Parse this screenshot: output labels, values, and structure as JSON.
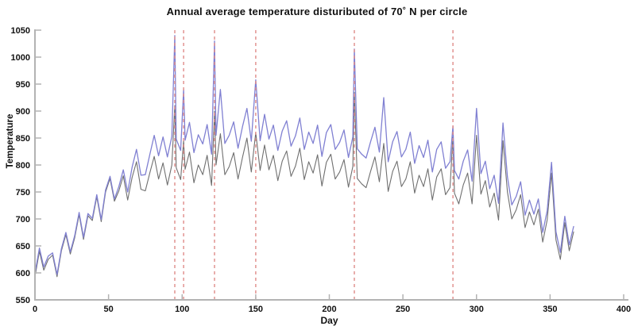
{
  "chart_data": {
    "type": "line",
    "title": "Annual average temperature distuributed of 70˚ N per circle",
    "xlabel": "Day",
    "ylabel": "Temperature",
    "xlim": [
      0,
      400
    ],
    "ylim": [
      550,
      1050
    ],
    "x_ticks": [
      0,
      50,
      100,
      150,
      200,
      250,
      300,
      350,
      400
    ],
    "y_ticks": [
      550,
      600,
      650,
      700,
      750,
      800,
      850,
      900,
      950,
      1000,
      1050
    ],
    "grid": false,
    "legend": false,
    "days": [
      0,
      3,
      6,
      9,
      12,
      15,
      18,
      21,
      24,
      27,
      30,
      33,
      36,
      39,
      42,
      45,
      48,
      51,
      54,
      57,
      60,
      63,
      66,
      69,
      72,
      75,
      78,
      81,
      84,
      87,
      90,
      93,
      95,
      96,
      99,
      101,
      102,
      105,
      108,
      111,
      114,
      117,
      120,
      122,
      123,
      126,
      129,
      132,
      135,
      138,
      141,
      144,
      147,
      150,
      153,
      156,
      159,
      162,
      165,
      168,
      171,
      174,
      177,
      180,
      183,
      186,
      189,
      192,
      195,
      198,
      201,
      204,
      207,
      210,
      213,
      216,
      217,
      219,
      222,
      225,
      228,
      231,
      234,
      237,
      240,
      243,
      246,
      249,
      252,
      255,
      258,
      261,
      264,
      267,
      270,
      273,
      276,
      279,
      282,
      284,
      285,
      288,
      291,
      294,
      297,
      300,
      303,
      306,
      309,
      312,
      315,
      318,
      321,
      324,
      327,
      330,
      333,
      336,
      339,
      342,
      345,
      348,
      351,
      354,
      357,
      360,
      363,
      366
    ],
    "series": [
      {
        "label": "lower temperature curve (gray)",
        "color": "#6f6f6f",
        "values": [
          593,
          640,
          605,
          625,
          633,
          593,
          641,
          671,
          635,
          665,
          708,
          662,
          706,
          697,
          741,
          695,
          750,
          775,
          733,
          752,
          780,
          735,
          777,
          806,
          755,
          752,
          785,
          816,
          774,
          804,
          763,
          800,
          910,
          795,
          773,
          845,
          792,
          824,
          767,
          800,
          782,
          818,
          762,
          900,
          800,
          858,
          782,
          797,
          823,
          774,
          814,
          850,
          787,
          860,
          790,
          837,
          791,
          818,
          771,
          807,
          826,
          779,
          798,
          831,
          773,
          806,
          785,
          819,
          761,
          805,
          820,
          774,
          787,
          810,
          759,
          797,
          935,
          775,
          765,
          758,
          788,
          815,
          769,
          840,
          751,
          788,
          807,
          760,
          774,
          806,
          748,
          781,
          760,
          793,
          735,
          778,
          793,
          745,
          758,
          852,
          748,
          728,
          763,
          785,
          728,
          855,
          746,
          771,
          722,
          748,
          698,
          845,
          750,
          700,
          717,
          745,
          684,
          713,
          689,
          718,
          657,
          698,
          785,
          661,
          625,
          693,
          641,
          676
        ]
      },
      {
        "label": "upper temperature curve (blue)",
        "color": "#8080d2",
        "values": [
          599,
          646,
          611,
          631,
          637,
          597,
          645,
          675,
          639,
          669,
          712,
          666,
          710,
          701,
          745,
          699,
          754,
          779,
          737,
          760,
          791,
          750,
          796,
          829,
          781,
          782,
          819,
          855,
          817,
          852,
          815,
          853,
          1040,
          848,
          827,
          940,
          846,
          879,
          823,
          856,
          839,
          875,
          820,
          1030,
          855,
          940,
          840,
          855,
          880,
          831,
          871,
          905,
          844,
          958,
          845,
          894,
          848,
          874,
          827,
          863,
          882,
          835,
          854,
          887,
          829,
          861,
          840,
          874,
          816,
          860,
          875,
          829,
          842,
          865,
          814,
          852,
          1015,
          830,
          820,
          813,
          843,
          870,
          824,
          925,
          806,
          843,
          862,
          815,
          829,
          861,
          803,
          836,
          814,
          846,
          787,
          829,
          843,
          794,
          806,
          872,
          790,
          774,
          807,
          828,
          770,
          905,
          784,
          807,
          756,
          781,
          729,
          878,
          778,
          726,
          742,
          769,
          707,
          735,
          709,
          737,
          675,
          715,
          805,
          676,
          638,
          705,
          652,
          686
        ]
      }
    ],
    "event_vlines": {
      "style": "dashed",
      "color": "#df8b89",
      "days": [
        95,
        101,
        122,
        150,
        217,
        284
      ]
    },
    "colors": {
      "background": "#ffffff",
      "axis": "#b3b3b3",
      "text": "#111111",
      "upper_series": "#8080d2",
      "lower_series": "#6f6f6f",
      "event_lines": "#df8b89"
    }
  }
}
